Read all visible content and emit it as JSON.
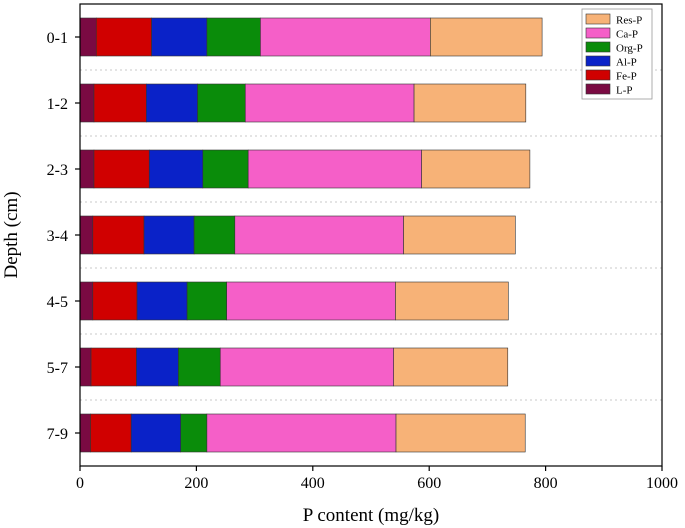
{
  "chart_data": {
    "type": "bar",
    "orientation": "horizontal",
    "stacked": true,
    "categories": [
      "0-1",
      "1-2",
      "2-3",
      "3-4",
      "4-5",
      "5-7",
      "7-9"
    ],
    "series": [
      {
        "name": "L-P",
        "color": "#7a0a42",
        "values": [
          28,
          24,
          24,
          22,
          22,
          19,
          18
        ]
      },
      {
        "name": "Fe-P",
        "color": "#d00000",
        "values": [
          95,
          90,
          95,
          88,
          76,
          78,
          70
        ]
      },
      {
        "name": "Al-P",
        "color": "#0a22c8",
        "values": [
          95,
          88,
          92,
          86,
          86,
          72,
          85
        ]
      },
      {
        "name": "Org-P",
        "color": "#0a8c0a",
        "values": [
          92,
          82,
          78,
          70,
          68,
          72,
          45
        ]
      },
      {
        "name": "Ca-P",
        "color": "#f55fc8",
        "values": [
          292,
          290,
          298,
          290,
          290,
          298,
          325
        ]
      },
      {
        "name": "Res-P",
        "color": "#f7b277",
        "values": [
          192,
          192,
          186,
          192,
          194,
          196,
          222
        ]
      }
    ],
    "xlabel": "P content (mg/kg)",
    "ylabel": "Depth (cm)",
    "xlim": [
      0,
      1000
    ],
    "xticks": [
      0,
      200,
      400,
      600,
      800,
      1000
    ],
    "grid": "horizontal dotted separators between categories",
    "legend": {
      "placement": "top-right",
      "order": [
        "Res-P",
        "Ca-P",
        "Org-P",
        "Al-P",
        "Fe-P",
        "L-P"
      ]
    }
  }
}
